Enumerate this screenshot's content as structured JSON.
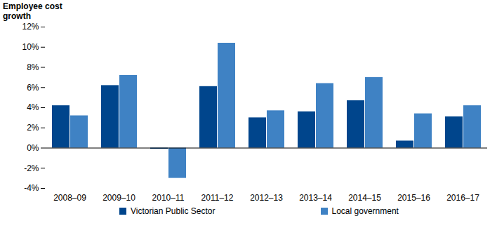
{
  "chart_data": {
    "type": "bar",
    "y_label": "Employee cost growth",
    "categories": [
      "2008–09",
      "2009–10",
      "2010–11",
      "2011–12",
      "2012–13",
      "2013–14",
      "2014–15",
      "2015–16",
      "2016–17"
    ],
    "series": [
      {
        "name": "Victorian Public Sector",
        "color": "#00458c",
        "values": [
          4.2,
          6.2,
          -0.1,
          6.1,
          3.0,
          3.6,
          4.7,
          0.7,
          3.1
        ]
      },
      {
        "name": "Local government",
        "color": "#3f82c4",
        "values": [
          3.2,
          7.2,
          -3.0,
          10.4,
          3.7,
          6.4,
          7.0,
          3.4,
          4.2
        ]
      }
    ],
    "ylim": [
      -4,
      12
    ],
    "yticks": [
      {
        "value": -4,
        "label": "-4%"
      },
      {
        "value": -2,
        "label": "-2%"
      },
      {
        "value": 0,
        "label": "0%"
      },
      {
        "value": 2,
        "label": "2%"
      },
      {
        "value": 4,
        "label": "4%"
      },
      {
        "value": 6,
        "label": "6%"
      },
      {
        "value": 8,
        "label": "8%"
      },
      {
        "value": 10,
        "label": "10%"
      },
      {
        "value": 12,
        "label": "12%"
      }
    ],
    "grid": false,
    "legend": "bottom"
  }
}
